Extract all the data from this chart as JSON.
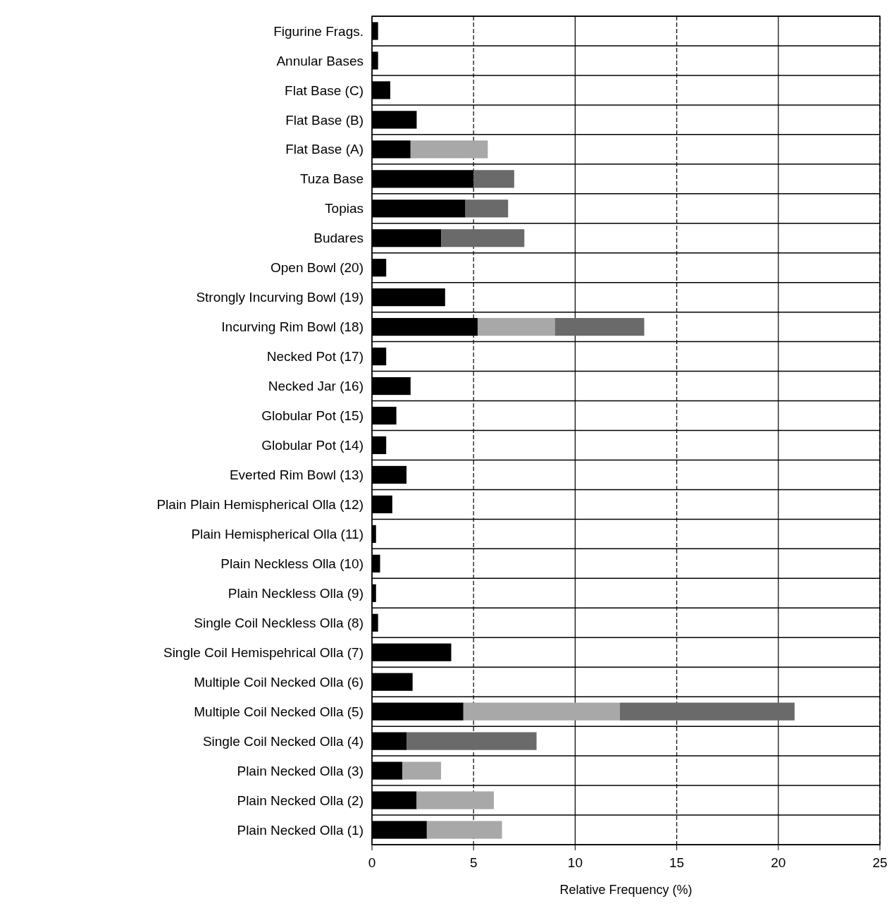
{
  "chart_data": {
    "type": "bar",
    "orientation": "horizontal",
    "stacked": true,
    "xlabel": "Relative Frequency (%)",
    "xlim": [
      0,
      25
    ],
    "xticks": [
      0,
      5,
      10,
      15,
      20,
      25
    ],
    "grid": true,
    "categories": [
      "Figurine Frags.",
      "Annular Bases",
      "Flat Base (C)",
      "Flat Base (B)",
      "Flat Base (A)",
      "Tuza Base",
      "Topias",
      "Budares",
      "Open Bowl (20)",
      "Strongly Incurving Bowl (19)",
      "Incurving Rim Bowl (18)",
      "Necked Pot (17)",
      "Necked Jar (16)",
      "Globular Pot (15)",
      "Globular Pot (14)",
      "Everted Rim Bowl (13)",
      "Plain Plain Hemispherical Olla (12)",
      "Plain Hemispherical Olla (11)",
      "Plain Neckless Olla (10)",
      "Plain Neckless Olla (9)",
      "Single Coil Neckless Olla (8)",
      "Single Coil Hemispehrical Olla (7)",
      "Multiple Coil Necked Olla (6)",
      "Multiple Coil Necked Olla (5)",
      "Single Coil Necked Olla (4)",
      "Plain Necked Olla (3)",
      "Plain Necked Olla (2)",
      "Plain Necked Olla (1)"
    ],
    "series": [
      {
        "color": "#000000",
        "values": [
          0.3,
          0.3,
          0.9,
          2.2,
          1.9,
          5.0,
          4.6,
          3.4,
          0.7,
          3.6,
          5.2,
          0.7,
          1.9,
          1.2,
          0.7,
          1.7,
          1.0,
          0.2,
          0.4,
          0.2,
          0.3,
          3.9,
          2.0,
          4.5,
          1.7,
          1.5,
          2.2,
          2.7
        ]
      },
      {
        "color": "#a8a8a8",
        "values": [
          null,
          null,
          null,
          null,
          3.8,
          null,
          null,
          null,
          null,
          null,
          3.8,
          null,
          null,
          null,
          null,
          null,
          null,
          null,
          null,
          null,
          null,
          null,
          null,
          7.7,
          null,
          1.9,
          3.8,
          3.7
        ]
      },
      {
        "color": "#6a6a6a",
        "values": [
          null,
          null,
          null,
          null,
          null,
          2.0,
          2.1,
          4.1,
          null,
          null,
          4.4,
          null,
          null,
          null,
          null,
          null,
          null,
          null,
          null,
          null,
          null,
          null,
          null,
          8.6,
          6.4,
          null,
          null,
          null
        ]
      }
    ]
  }
}
